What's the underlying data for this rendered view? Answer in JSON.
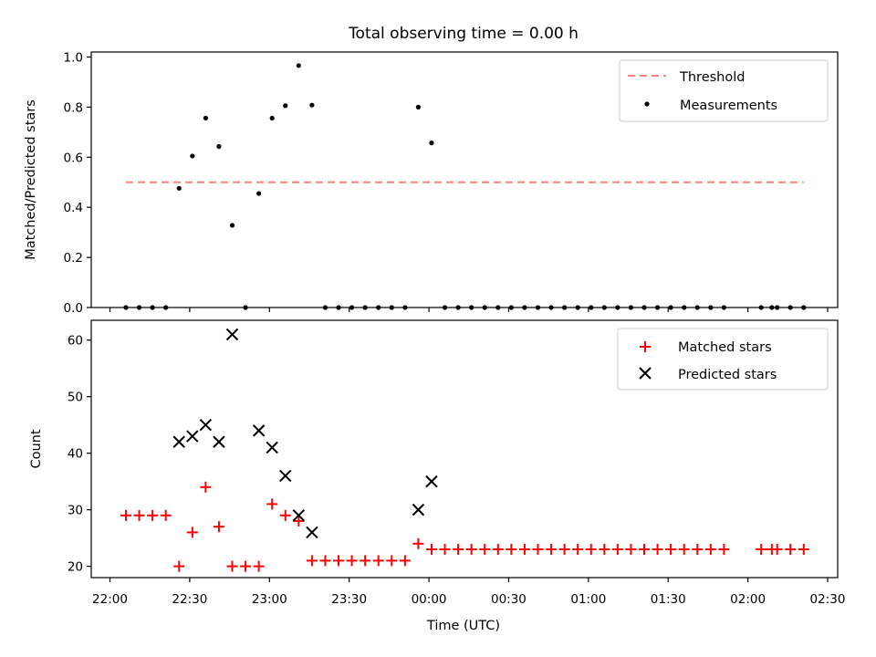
{
  "chart_data": [
    {
      "type": "scatter",
      "title": "Total observing time = 0.00 h",
      "xlabel": "",
      "ylabel": "Matched/Predicted stars",
      "ylim": [
        0,
        1.02
      ],
      "yticks": [
        "0.0",
        "0.2",
        "0.4",
        "0.6",
        "0.8",
        "1.0"
      ],
      "legend_position": "top-right",
      "threshold": {
        "name": "Threshold",
        "value": 0.5,
        "x_start": "22:06",
        "x_end": "02:21",
        "color": "#ff8080",
        "style": "dashed"
      },
      "series": [
        {
          "name": "Measurements",
          "color": "#000000",
          "marker": "dot",
          "x": [
            "22:06",
            "22:11",
            "22:16",
            "22:21",
            "22:26",
            "22:31",
            "22:36",
            "22:41",
            "22:46",
            "22:51",
            "22:56",
            "23:01",
            "23:06",
            "23:11",
            "23:16",
            "23:21",
            "23:26",
            "23:31",
            "23:36",
            "23:41",
            "23:46",
            "23:51",
            "23:56",
            "00:01",
            "00:06",
            "00:11",
            "00:16",
            "00:21",
            "00:26",
            "00:31",
            "00:36",
            "00:41",
            "00:46",
            "00:51",
            "00:56",
            "01:01",
            "01:06",
            "01:11",
            "01:16",
            "01:21",
            "01:26",
            "01:31",
            "01:36",
            "01:41",
            "01:46",
            "01:51",
            "02:05",
            "02:09",
            "02:11",
            "02:16",
            "02:21"
          ],
          "y": [
            0.0,
            0.0,
            0.0,
            0.0,
            0.476,
            0.605,
            0.756,
            0.643,
            0.328,
            0.0,
            0.455,
            0.756,
            0.806,
            0.966,
            0.808,
            0.0,
            0.0,
            0.0,
            0.0,
            0.0,
            0.0,
            0.0,
            0.8,
            0.657,
            0.0,
            0.0,
            0.0,
            0.0,
            0.0,
            0.0,
            0.0,
            0.0,
            0.0,
            0.0,
            0.0,
            0.0,
            0.0,
            0.0,
            0.0,
            0.0,
            0.0,
            0.0,
            0.0,
            0.0,
            0.0,
            0.0,
            0.0,
            0.0,
            0.0,
            0.0,
            0.0
          ]
        }
      ]
    },
    {
      "type": "scatter",
      "title": "",
      "xlabel": "Time (UTC)",
      "ylabel": "Count",
      "ylim": [
        18,
        63.5
      ],
      "yticks": [
        "20",
        "30",
        "40",
        "50",
        "60"
      ],
      "xticks": [
        "22:00",
        "22:30",
        "23:00",
        "23:30",
        "00:00",
        "00:30",
        "01:00",
        "01:30",
        "02:00",
        "02:30"
      ],
      "legend_position": "top-right",
      "series": [
        {
          "name": "Matched stars",
          "color": "#ff0000",
          "marker": "plus",
          "x": [
            "22:06",
            "22:11",
            "22:16",
            "22:21",
            "22:26",
            "22:31",
            "22:36",
            "22:41",
            "22:46",
            "22:51",
            "22:56",
            "23:01",
            "23:06",
            "23:11",
            "23:16",
            "23:21",
            "23:26",
            "23:31",
            "23:36",
            "23:41",
            "23:46",
            "23:51",
            "23:56",
            "00:01",
            "00:06",
            "00:11",
            "00:16",
            "00:21",
            "00:26",
            "00:31",
            "00:36",
            "00:41",
            "00:46",
            "00:51",
            "00:56",
            "01:01",
            "01:06",
            "01:11",
            "01:16",
            "01:21",
            "01:26",
            "01:31",
            "01:36",
            "01:41",
            "01:46",
            "01:51",
            "02:05",
            "02:09",
            "02:11",
            "02:16",
            "02:21"
          ],
          "y": [
            29,
            29,
            29,
            29,
            20,
            26,
            34,
            27,
            20,
            20,
            20,
            31,
            29,
            28,
            21,
            21,
            21,
            21,
            21,
            21,
            21,
            21,
            24,
            23,
            23,
            23,
            23,
            23,
            23,
            23,
            23,
            23,
            23,
            23,
            23,
            23,
            23,
            23,
            23,
            23,
            23,
            23,
            23,
            23,
            23,
            23,
            23,
            23,
            23,
            23,
            23
          ]
        },
        {
          "name": "Predicted stars",
          "color": "#000000",
          "marker": "x",
          "x": [
            "22:26",
            "22:31",
            "22:36",
            "22:41",
            "22:46",
            "22:56",
            "23:01",
            "23:06",
            "23:11",
            "23:16",
            "23:56",
            "00:01"
          ],
          "y": [
            42,
            43,
            45,
            42,
            61,
            44,
            41,
            36,
            29,
            26,
            30,
            35
          ]
        }
      ]
    }
  ]
}
